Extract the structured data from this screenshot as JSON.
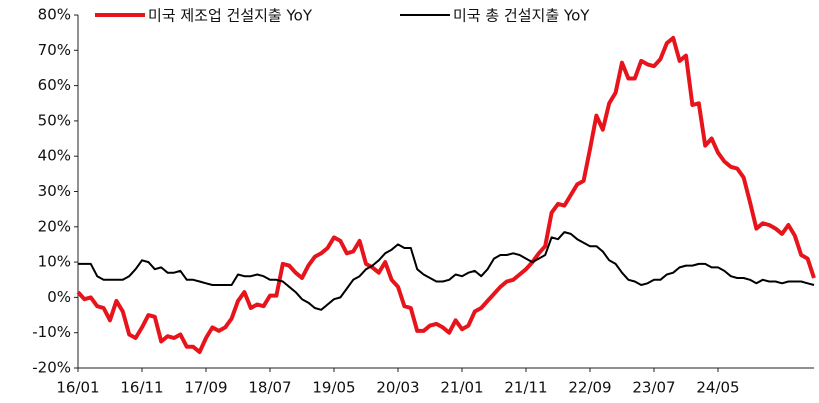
{
  "chart_data": {
    "type": "line",
    "categories": [
      "16/01",
      null,
      null,
      null,
      null,
      null,
      null,
      null,
      null,
      null,
      "16/11",
      null,
      null,
      null,
      null,
      null,
      null,
      null,
      null,
      null,
      "17/09",
      null,
      null,
      null,
      null,
      null,
      null,
      null,
      null,
      null,
      "18/07",
      null,
      null,
      null,
      null,
      null,
      null,
      null,
      null,
      null,
      "19/05",
      null,
      null,
      null,
      null,
      null,
      null,
      null,
      null,
      null,
      "20/03",
      null,
      null,
      null,
      null,
      null,
      null,
      null,
      null,
      null,
      "21/01",
      null,
      null,
      null,
      null,
      null,
      null,
      null,
      null,
      null,
      "21/11",
      null,
      null,
      null,
      null,
      null,
      null,
      null,
      null,
      null,
      "22/09",
      null,
      null,
      null,
      null,
      null,
      null,
      null,
      null,
      null,
      "23/07",
      null,
      null,
      null,
      null,
      null,
      null,
      null,
      null,
      null,
      "24/05",
      null,
      null,
      null,
      null,
      null,
      null,
      null,
      null,
      null,
      null,
      null,
      null,
      null,
      null,
      null
    ],
    "series": [
      {
        "name": "미국 제조업 건설지출 YoY",
        "color": "#e8141c",
        "width": 4,
        "values": [
          1.5,
          -0.5,
          0,
          -2.5,
          -3,
          -6.5,
          -1,
          -4,
          -10.5,
          -11.5,
          -8.5,
          -5,
          -5.5,
          -12.5,
          -11,
          -11.5,
          -10.5,
          -14,
          -14,
          -15.5,
          -11.5,
          -8.5,
          -9.5,
          -8.5,
          -6,
          -1,
          1.5,
          -3,
          -2,
          -2.5,
          0.5,
          0.5,
          9.5,
          9,
          7,
          5.5,
          9,
          11.5,
          12.5,
          14,
          17,
          16,
          12.5,
          13,
          16,
          9.5,
          8.5,
          7,
          10,
          5,
          3,
          -2.5,
          -3,
          -9.5,
          -9.5,
          -8,
          -7.5,
          -8.5,
          -10,
          -6.5,
          -9,
          -8,
          -4,
          -3,
          -1,
          1,
          3,
          4.5,
          5,
          6.5,
          8,
          10,
          12.5,
          14.5,
          24,
          26.5,
          26,
          29,
          32,
          33,
          42,
          51.5,
          47.5,
          55,
          58,
          66.5,
          62,
          62,
          67,
          66,
          65.5,
          67.5,
          72,
          73.5,
          67,
          68.5,
          54.5,
          55,
          43,
          45,
          41,
          38.5,
          37,
          36.5,
          34,
          27,
          19.5,
          21,
          20.5,
          19.5,
          18,
          20.5,
          17.5,
          12,
          11,
          5.5
        ]
      },
      {
        "name": "미국 총 건설지출 YoY",
        "color": "#000000",
        "width": 2,
        "values": [
          9.5,
          9.5,
          9.5,
          6,
          5,
          5,
          5,
          5,
          6,
          8,
          10.5,
          10,
          8,
          8.5,
          7,
          7,
          7.5,
          5,
          5,
          4.5,
          4,
          3.5,
          3.5,
          3.5,
          3.5,
          6.5,
          6,
          6,
          6.5,
          6,
          5,
          5,
          4.5,
          3,
          1.5,
          -0.5,
          -1.5,
          -3,
          -3.5,
          -2,
          -0.5,
          0,
          2.5,
          5,
          6,
          8,
          9,
          10.5,
          12.5,
          13.5,
          15,
          14,
          14,
          8,
          6.5,
          5.5,
          4.5,
          4.5,
          5,
          6.5,
          6,
          7,
          7.5,
          6,
          8,
          11,
          12,
          12,
          12.5,
          12,
          11,
          10,
          11,
          12,
          17,
          16.5,
          18.5,
          18,
          16.5,
          15.5,
          14.5,
          14.5,
          13,
          10.5,
          9.5,
          7,
          5,
          4.5,
          3.5,
          4,
          5,
          5,
          6.5,
          7,
          8.5,
          9,
          9,
          9.5,
          9.5,
          8.5,
          8.5,
          7.5,
          6,
          5.5,
          5.5,
          5,
          4,
          5,
          4.5,
          4.5,
          4,
          4.5,
          4.5,
          4.5,
          4,
          3.5
        ]
      }
    ],
    "ylim": [
      -20,
      80
    ],
    "yticks": [
      {
        "value": -20,
        "label": "-20%"
      },
      {
        "value": -10,
        "label": "-10%"
      },
      {
        "value": 0,
        "label": "0%"
      },
      {
        "value": 10,
        "label": "10%"
      },
      {
        "value": 20,
        "label": "20%"
      },
      {
        "value": 30,
        "label": "30%"
      },
      {
        "value": 40,
        "label": "40%"
      },
      {
        "value": 50,
        "label": "50%"
      },
      {
        "value": 60,
        "label": "60%"
      },
      {
        "value": 70,
        "label": "70%"
      },
      {
        "value": 80,
        "label": "80%"
      }
    ],
    "grid": false,
    "legend": "top"
  }
}
